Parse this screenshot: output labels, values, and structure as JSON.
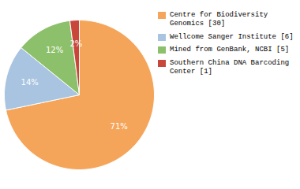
{
  "chart_data": {
    "type": "pie",
    "categories": [
      "Centre for Biodiversity\nGenomics [30]",
      "Wellcome Sanger Institute [6]",
      "Mined from GenBank, NCBI [5]",
      "Southern China DNA Barcoding\nCenter [1]"
    ],
    "values": [
      71,
      14,
      12,
      2
    ],
    "value_labels": [
      "71%",
      "14%",
      "12%",
      "2%"
    ],
    "colors": [
      "#F5A55A",
      "#A8C4E0",
      "#8DC06A",
      "#C8473A"
    ],
    "data_labels": true,
    "legend": "right"
  }
}
